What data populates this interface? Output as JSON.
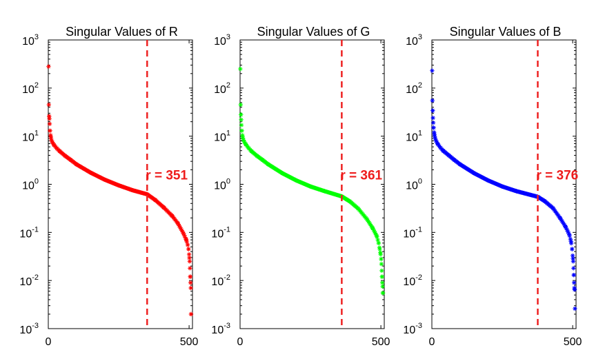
{
  "chart_data": [
    {
      "type": "scatter",
      "title": "Singular Values of R",
      "color": "#ff0000",
      "marker": "asterisk",
      "yscale": "log",
      "xlim": [
        0,
        512
      ],
      "ylim": [
        0.001,
        1000
      ],
      "x_ticks": [
        {
          "value": 0,
          "label": "0"
        },
        {
          "value": 500,
          "label": "500"
        }
      ],
      "y_ticks": [
        {
          "value": 0.001,
          "base": "10",
          "exp": "-3"
        },
        {
          "value": 0.01,
          "base": "10",
          "exp": "-2"
        },
        {
          "value": 0.1,
          "base": "10",
          "exp": "-1"
        },
        {
          "value": 1,
          "base": "10",
          "exp": "0"
        },
        {
          "value": 10,
          "base": "10",
          "exp": "1"
        },
        {
          "value": 100,
          "base": "10",
          "exp": "2"
        },
        {
          "value": 1000,
          "base": "10",
          "exp": "3"
        }
      ],
      "curve": [
        [
          1,
          280
        ],
        [
          2,
          45
        ],
        [
          3,
          26
        ],
        [
          4,
          23
        ],
        [
          5,
          18
        ],
        [
          6,
          13
        ],
        [
          8,
          10.5
        ],
        [
          10,
          9
        ],
        [
          12,
          8
        ],
        [
          15,
          7.4
        ],
        [
          20,
          6.6
        ],
        [
          30,
          5.6
        ],
        [
          40,
          4.9
        ],
        [
          60,
          3.9
        ],
        [
          80,
          3.2
        ],
        [
          100,
          2.6
        ],
        [
          150,
          1.75
        ],
        [
          200,
          1.25
        ],
        [
          250,
          0.95
        ],
        [
          300,
          0.75
        ],
        [
          351,
          0.62
        ],
        [
          380,
          0.47
        ],
        [
          410,
          0.33
        ],
        [
          440,
          0.22
        ],
        [
          460,
          0.155
        ],
        [
          480,
          0.095
        ],
        [
          490,
          0.07
        ],
        [
          495,
          0.055
        ],
        [
          498,
          0.045
        ],
        [
          500,
          0.035
        ],
        [
          502,
          0.025
        ],
        [
          503,
          0.018
        ],
        [
          504,
          0.012
        ],
        [
          505,
          0.009
        ],
        [
          506,
          0.007
        ],
        [
          507,
          0.002
        ]
      ],
      "cutoff": {
        "x": 351,
        "label": "r = 351",
        "color": "#ee2222"
      }
    },
    {
      "type": "scatter",
      "title": "Singular Values of G",
      "color": "#00ff00",
      "marker": "asterisk",
      "yscale": "log",
      "xlim": [
        0,
        512
      ],
      "ylim": [
        0.001,
        1000
      ],
      "x_ticks": [
        {
          "value": 0,
          "label": "0"
        },
        {
          "value": 500,
          "label": "500"
        }
      ],
      "y_ticks": [
        {
          "value": 0.001,
          "base": "10",
          "exp": "-3"
        },
        {
          "value": 0.01,
          "base": "10",
          "exp": "-2"
        },
        {
          "value": 0.1,
          "base": "10",
          "exp": "-1"
        },
        {
          "value": 1,
          "base": "10",
          "exp": "0"
        },
        {
          "value": 10,
          "base": "10",
          "exp": "1"
        },
        {
          "value": 100,
          "base": "10",
          "exp": "2"
        },
        {
          "value": 1000,
          "base": "10",
          "exp": "3"
        }
      ],
      "curve": [
        [
          1,
          250
        ],
        [
          2,
          45
        ],
        [
          3,
          28
        ],
        [
          4,
          22
        ],
        [
          5,
          17
        ],
        [
          6,
          13
        ],
        [
          8,
          10.5
        ],
        [
          10,
          9.2
        ],
        [
          12,
          8.3
        ],
        [
          15,
          7.6
        ],
        [
          20,
          6.8
        ],
        [
          30,
          5.7
        ],
        [
          40,
          4.9
        ],
        [
          60,
          3.9
        ],
        [
          80,
          3.2
        ],
        [
          100,
          2.6
        ],
        [
          150,
          1.7
        ],
        [
          200,
          1.2
        ],
        [
          250,
          0.9
        ],
        [
          300,
          0.72
        ],
        [
          361,
          0.56
        ],
        [
          390,
          0.44
        ],
        [
          420,
          0.31
        ],
        [
          450,
          0.19
        ],
        [
          470,
          0.125
        ],
        [
          485,
          0.085
        ],
        [
          492,
          0.06
        ],
        [
          496,
          0.045
        ],
        [
          499,
          0.035
        ],
        [
          501,
          0.028
        ],
        [
          502,
          0.022
        ],
        [
          503,
          0.016
        ],
        [
          504,
          0.012
        ],
        [
          505,
          0.009
        ],
        [
          506,
          0.0075
        ],
        [
          507,
          0.0055
        ]
      ],
      "cutoff": {
        "x": 361,
        "label": "r = 361",
        "color": "#ee2222"
      }
    },
    {
      "type": "scatter",
      "title": "Singular Values of B",
      "color": "#0000ff",
      "marker": "asterisk",
      "yscale": "log",
      "xlim": [
        0,
        512
      ],
      "ylim": [
        0.001,
        1000
      ],
      "x_ticks": [
        {
          "value": 0,
          "label": "0"
        },
        {
          "value": 500,
          "label": "500"
        }
      ],
      "y_ticks": [
        {
          "value": 0.001,
          "base": "10",
          "exp": "-3"
        },
        {
          "value": 0.01,
          "base": "10",
          "exp": "-2"
        },
        {
          "value": 0.1,
          "base": "10",
          "exp": "-1"
        },
        {
          "value": 1,
          "base": "10",
          "exp": "0"
        },
        {
          "value": 10,
          "base": "10",
          "exp": "1"
        },
        {
          "value": 100,
          "base": "10",
          "exp": "2"
        },
        {
          "value": 1000,
          "base": "10",
          "exp": "3"
        }
      ],
      "curve": [
        [
          1,
          230
        ],
        [
          2,
          55
        ],
        [
          3,
          34
        ],
        [
          4,
          24
        ],
        [
          5,
          19
        ],
        [
          6,
          15
        ],
        [
          8,
          12
        ],
        [
          10,
          10
        ],
        [
          12,
          9
        ],
        [
          15,
          8
        ],
        [
          20,
          7
        ],
        [
          30,
          5.8
        ],
        [
          40,
          5
        ],
        [
          60,
          4
        ],
        [
          80,
          3.2
        ],
        [
          100,
          2.6
        ],
        [
          150,
          1.7
        ],
        [
          200,
          1.2
        ],
        [
          250,
          0.9
        ],
        [
          300,
          0.72
        ],
        [
          376,
          0.55
        ],
        [
          400,
          0.45
        ],
        [
          430,
          0.32
        ],
        [
          455,
          0.2
        ],
        [
          475,
          0.13
        ],
        [
          488,
          0.09
        ],
        [
          494,
          0.065
        ],
        [
          498,
          0.045
        ],
        [
          500,
          0.033
        ],
        [
          502,
          0.025
        ],
        [
          503,
          0.018
        ],
        [
          504,
          0.013
        ],
        [
          505,
          0.009
        ],
        [
          506,
          0.007
        ],
        [
          507,
          0.0065
        ],
        [
          508,
          0.0026
        ]
      ],
      "cutoff": {
        "x": 376,
        "label": "r = 376",
        "color": "#ee2222"
      }
    }
  ]
}
